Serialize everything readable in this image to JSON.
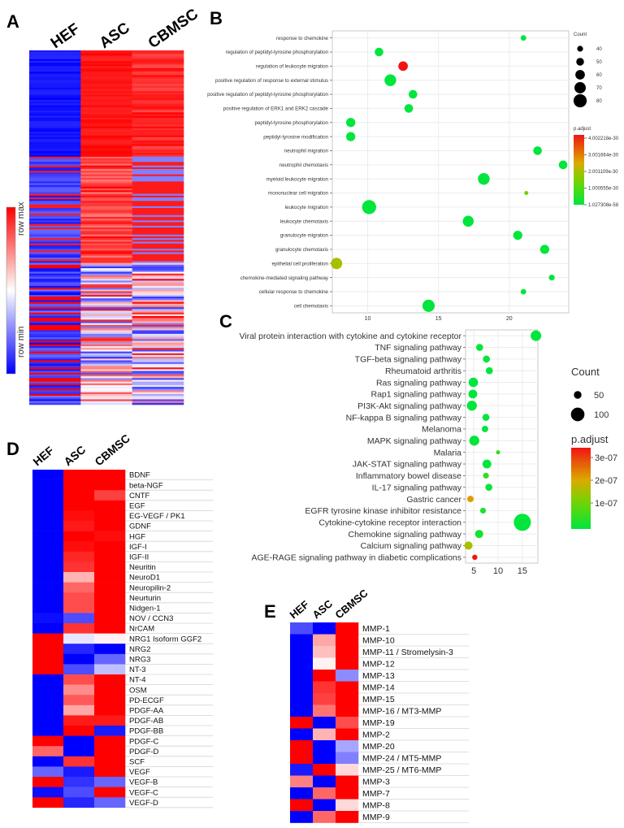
{
  "panels": {
    "A": "A",
    "B": "B",
    "C": "C",
    "D": "D",
    "E": "E"
  },
  "panel_a": {
    "columns": [
      "HEF",
      "ASC",
      "CBMSC"
    ],
    "colorbar": {
      "max_label": "row max",
      "min_label": "row min",
      "max_color": "#ff0000",
      "mid_color": "#ffffff",
      "min_color": "#0000ff"
    }
  },
  "chart_data": [
    {
      "id": "B",
      "type": "scatter",
      "title": "",
      "xlabel": "",
      "x_ticks": [
        10,
        15,
        20
      ],
      "xlim": [
        7.5,
        24.2
      ],
      "categories": [
        "response to chemokine",
        "regulation of peptidyl-tyrosine phosphorylation",
        "regulation of leukocyte migration",
        "positive regulation of response to external stimulus",
        "positive regulation of peptidyl-tyrosine phosphorylation",
        "positive regulation of ERK1 and ERK2 cascade",
        "peptidyl-tyrosine phosphorylation",
        "peptidyl-tyrosine modification",
        "neutrophil migration",
        "neutrophil chemotaxis",
        "myeloid leukocyte migration",
        "mononuclear cell migration",
        "leukocyte migration",
        "leukocyte chemotaxis",
        "granulocyte migration",
        "granulocyte chemotaxis",
        "epithelial cell proliferation",
        "chemokine-mediated signaling pathway",
        "cellular response to chemokine",
        "cell chemotaxis"
      ],
      "x": [
        21,
        10.8,
        12.5,
        11.6,
        13.2,
        12.9,
        8.8,
        8.8,
        22,
        23.8,
        18.2,
        21.2,
        10.1,
        17.1,
        20.6,
        22.5,
        7.8,
        23,
        21,
        14.3
      ],
      "count": [
        38,
        55,
        60,
        72,
        55,
        55,
        58,
        58,
        55,
        55,
        72,
        30,
        85,
        68,
        58,
        58,
        70,
        40,
        38,
        75
      ],
      "p_adjust": [
        1.1e-58,
        1.1e-58,
        4e-30,
        1.1e-58,
        1.1e-58,
        1.1e-58,
        1.1e-58,
        1.1e-58,
        1.1e-58,
        1.1e-58,
        1.1e-58,
        1.3e-30,
        1.1e-58,
        1.1e-58,
        1.1e-58,
        1.1e-58,
        1.9e-30,
        1.1e-58,
        1.1e-58,
        1.1e-58
      ],
      "legend_count_title": "Count",
      "legend_count_values": [
        40,
        50,
        60,
        70,
        80
      ],
      "legend_color_title": "p.adjust",
      "legend_color_labels": [
        "4.002218e-30",
        "3.001664e-30",
        "2.001109e-30",
        "1.000555e-30",
        "1.027308e-58"
      ]
    },
    {
      "id": "C",
      "type": "scatter",
      "title": "",
      "xlabel": "",
      "x_ticks": [
        5,
        10,
        15
      ],
      "xlim": [
        3.3,
        18.2
      ],
      "categories": [
        "Viral protein interaction with cytokine and cytokine receptor",
        "TNF signaling pathway",
        "TGF-beta signaling pathway",
        "Rheumatoid arthritis",
        "Ras signaling pathway",
        "Rap1 signaling pathway",
        "PI3K-Akt signaling pathway",
        "NF-kappa B signaling pathway",
        "Melanoma",
        "MAPK signaling pathway",
        "Malaria",
        "JAK-STAT signaling pathway",
        "Inflammatory bowel disease",
        "IL-17 signaling pathway",
        "Gastric cancer",
        "EGFR tyrosine kinase inhibitor resistance",
        "Cytokine-cytokine receptor interaction",
        "Chemokine signaling pathway",
        "Calcium signaling pathway",
        "AGE-RAGE signaling pathway in diabetic complications"
      ],
      "x": [
        17.8,
        6.2,
        7.6,
        8.2,
        4.9,
        4.8,
        4.6,
        7.5,
        7.3,
        5.1,
        10,
        7.7,
        7.5,
        8.1,
        4.3,
        6.9,
        15,
        6.1,
        3.9,
        5.2
      ],
      "count": [
        75,
        45,
        45,
        45,
        65,
        60,
        70,
        45,
        40,
        70,
        20,
        60,
        35,
        45,
        40,
        35,
        130,
        55,
        55,
        30
      ],
      "p_adjust": [
        1e-09,
        1e-09,
        1e-09,
        1e-09,
        1e-09,
        1e-09,
        1e-09,
        1e-09,
        1e-09,
        1e-09,
        5e-08,
        1e-09,
        5e-08,
        1e-09,
        2.3e-07,
        3e-08,
        1e-09,
        2e-08,
        1.7e-07,
        3.6e-07
      ],
      "legend_count_title": "Count",
      "legend_count_values": [
        50,
        100
      ],
      "legend_color_title": "p.adjust",
      "legend_color_labels": [
        "3e-07",
        "2e-07",
        "1e-07"
      ]
    },
    {
      "id": "D",
      "type": "heatmap",
      "columns": [
        "HEF",
        "ASC",
        "CBMSC"
      ],
      "rows": [
        "BDNF",
        "beta-NGF",
        "CNTF",
        "EGF",
        "EG-VEGF / PK1",
        "GDNF",
        "HGF",
        "IGF-I",
        "IGF-II",
        "Neuritin",
        "NeuroD1",
        "Neuropilin-2",
        "Neurturin",
        "Nidgen-1",
        "NOV / CCN3",
        "NrCAM",
        "NRG1 Isoform GGF2",
        "NRG2",
        "NRG3",
        "NT-3",
        "NT-4",
        "OSM",
        "PD-ECGF",
        "PDGF-AA",
        "PDGF-AB",
        "PDGF-BB",
        "PDGF-C",
        "PDGF-D",
        "SCF",
        "VEGF",
        "VEGF-B",
        "VEGF-C",
        "VEGF-D"
      ],
      "values": [
        [
          -1,
          1,
          1
        ],
        [
          -1,
          1,
          1
        ],
        [
          -1,
          1,
          0.75
        ],
        [
          -1,
          1,
          1
        ],
        [
          -1,
          0.95,
          1
        ],
        [
          -1,
          0.9,
          1
        ],
        [
          -1,
          1,
          0.95
        ],
        [
          -1,
          0.95,
          1
        ],
        [
          -1,
          0.85,
          1
        ],
        [
          -1,
          0.8,
          1
        ],
        [
          -1,
          0.3,
          1
        ],
        [
          -1,
          0.6,
          1
        ],
        [
          -1,
          0.7,
          1
        ],
        [
          -1,
          0.7,
          1
        ],
        [
          -0.95,
          -0.7,
          1
        ],
        [
          -1,
          0.8,
          1
        ],
        [
          1,
          -0.1,
          0.05
        ],
        [
          1,
          -0.85,
          -1
        ],
        [
          1,
          -1,
          -0.6
        ],
        [
          1,
          -0.7,
          -0.25
        ],
        [
          -1,
          0.7,
          1
        ],
        [
          -1,
          0.45,
          1
        ],
        [
          -1,
          0.65,
          1
        ],
        [
          -1,
          0.35,
          1
        ],
        [
          -1,
          0.9,
          0.9
        ],
        [
          -1,
          1,
          -0.9
        ],
        [
          1,
          -1,
          1
        ],
        [
          0.6,
          -1,
          1
        ],
        [
          -1,
          0.8,
          1
        ],
        [
          -0.6,
          -0.9,
          1
        ],
        [
          1,
          -0.8,
          -0.6
        ],
        [
          -0.95,
          -0.7,
          1
        ],
        [
          1,
          -0.85,
          -0.6
        ]
      ]
    },
    {
      "id": "E",
      "type": "heatmap",
      "columns": [
        "HEF",
        "ASC",
        "CBMSC"
      ],
      "rows": [
        "MMP-1",
        "MMP-10",
        "MMP-11 / Stromelysin-3",
        "MMP-12",
        "MMP-13",
        "MMP-14",
        "MMP-15",
        "MMP-16 / MT3-MMP",
        "MMP-19",
        "MMP-2",
        "MMP-20",
        "MMP-24 / MT5-MMP",
        "MMP-25 / MT6-MMP",
        "MMP-3",
        "MMP-7",
        "MMP-8",
        "MMP-9"
      ],
      "values": [
        [
          -0.7,
          -1,
          1
        ],
        [
          -1,
          0.35,
          1
        ],
        [
          -1,
          0.25,
          1
        ],
        [
          -1,
          0.05,
          1
        ],
        [
          -1,
          1,
          -0.45
        ],
        [
          -1,
          0.8,
          1
        ],
        [
          -1,
          0.75,
          1
        ],
        [
          -1,
          0.55,
          1
        ],
        [
          1,
          -1,
          0.7
        ],
        [
          -1,
          0.3,
          1
        ],
        [
          1,
          -1,
          -0.35
        ],
        [
          1,
          -1,
          -0.5
        ],
        [
          -0.9,
          1,
          0.15
        ],
        [
          0.5,
          -1,
          1
        ],
        [
          -1,
          0.6,
          1
        ],
        [
          1,
          -1,
          0.15
        ],
        [
          -1,
          0.6,
          1
        ]
      ]
    }
  ]
}
